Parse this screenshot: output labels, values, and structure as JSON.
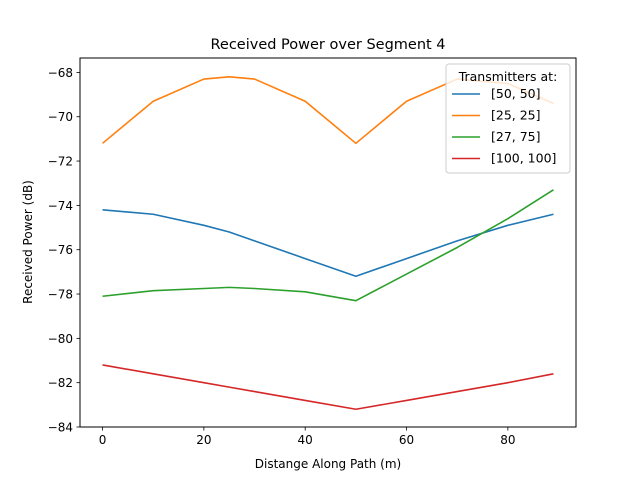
{
  "chart_data": {
    "type": "line",
    "title": "Received Power over Segment 4",
    "xlabel": "Distange Along Path (m)",
    "ylabel": "Received Power (dB)",
    "xlim": [
      -4.45,
      93.45
    ],
    "ylim": [
      -84,
      -67.35
    ],
    "xticks": [
      0,
      20,
      40,
      60,
      80
    ],
    "yticks": [
      -84,
      -82,
      -80,
      -78,
      -76,
      -74,
      -72,
      -70,
      -68
    ],
    "grid": false,
    "legend": {
      "title": "Transmitters at:",
      "position": "top-right"
    },
    "x": [
      0,
      10,
      20,
      25,
      30,
      40,
      50,
      60,
      70,
      80,
      89
    ],
    "series": [
      {
        "name": "[50, 50]",
        "color": "#1f77b4",
        "values": [
          -74.2,
          -74.4,
          -74.9,
          -75.2,
          -75.6,
          -76.4,
          -77.2,
          -76.4,
          -75.6,
          -74.9,
          -74.4
        ]
      },
      {
        "name": "[25, 25]",
        "color": "#ff7f0e",
        "values": [
          -71.2,
          -69.3,
          -68.3,
          -68.2,
          -68.3,
          -69.3,
          -71.2,
          -69.3,
          -68.3,
          -68.5,
          -69.4
        ]
      },
      {
        "name": "[27, 75]",
        "color": "#2ca02c",
        "values": [
          -78.1,
          -77.85,
          -77.75,
          -77.7,
          -77.75,
          -77.9,
          -78.3,
          -77.1,
          -75.9,
          -74.6,
          -73.3
        ]
      },
      {
        "name": "[100, 100]",
        "color": "#d62728",
        "values": [
          -81.2,
          -81.6,
          -82.0,
          -82.2,
          -82.4,
          -82.8,
          -83.2,
          -82.8,
          -82.4,
          -82.0,
          -81.6
        ]
      }
    ]
  }
}
